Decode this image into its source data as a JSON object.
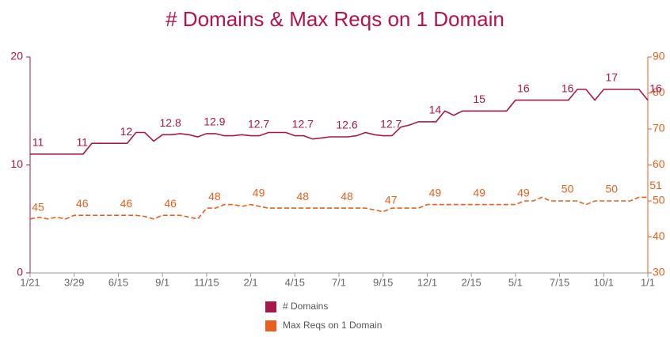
{
  "chart_data": {
    "type": "line",
    "title": "# Domains & Max Reqs on 1 Domain",
    "categories": [
      "1/21",
      null,
      null,
      null,
      null,
      "3/29",
      null,
      null,
      null,
      null,
      "6/15",
      null,
      null,
      null,
      null,
      "9/1",
      null,
      null,
      null,
      null,
      "11/15",
      null,
      null,
      null,
      null,
      "2/1",
      null,
      null,
      null,
      null,
      "4/15",
      null,
      null,
      null,
      null,
      "7/1",
      null,
      null,
      null,
      null,
      "9/15",
      null,
      null,
      null,
      null,
      "12/1",
      null,
      null,
      null,
      null,
      "2/15",
      null,
      null,
      null,
      null,
      "5/1",
      null,
      null,
      null,
      null,
      "7/15",
      null,
      null,
      null,
      null,
      "10/1",
      null,
      null,
      null,
      null,
      "1/1"
    ],
    "series": [
      {
        "name": "# Domains",
        "color": "#a8174a",
        "axis": "y",
        "dash": false,
        "values": [
          11,
          11,
          11,
          11,
          11,
          11,
          11,
          12,
          12,
          12,
          12,
          12,
          13,
          13,
          12.2,
          12.8,
          12.8,
          12.9,
          12.8,
          12.6,
          12.9,
          12.9,
          12.7,
          12.7,
          12.8,
          12.7,
          12.7,
          13,
          13,
          13,
          12.7,
          12.7,
          12.4,
          12.5,
          12.6,
          12.6,
          12.6,
          12.7,
          13,
          12.8,
          12.7,
          12.7,
          13.5,
          13.7,
          14,
          14,
          14,
          15,
          14.6,
          15,
          15,
          15,
          15,
          15,
          15,
          16,
          16,
          16,
          16,
          16,
          16,
          16,
          17,
          17,
          16,
          17,
          17,
          17,
          17,
          17,
          16
        ],
        "value_labels": [
          "11",
          null,
          null,
          null,
          null,
          "11",
          null,
          null,
          null,
          null,
          "12",
          null,
          null,
          null,
          null,
          "12.8",
          null,
          null,
          null,
          null,
          "12.9",
          null,
          null,
          null,
          null,
          "12.7",
          null,
          null,
          null,
          null,
          "12.7",
          null,
          null,
          null,
          null,
          "12.6",
          null,
          null,
          null,
          null,
          "12.7",
          null,
          null,
          null,
          null,
          "14",
          null,
          null,
          null,
          null,
          "15",
          null,
          null,
          null,
          null,
          "16",
          null,
          null,
          null,
          null,
          "16",
          null,
          null,
          null,
          null,
          "17",
          null,
          null,
          null,
          null,
          "16"
        ]
      },
      {
        "name": "Max Reqs on 1 Domain",
        "color": "#e8601c",
        "axis": "y2",
        "dash": true,
        "values": [
          45,
          45.5,
          45,
          45.5,
          45,
          46,
          46,
          46,
          46,
          46,
          46,
          46,
          46,
          45.7,
          45,
          46,
          46,
          46,
          45.5,
          45,
          48,
          48,
          49,
          49,
          48.5,
          49,
          48.5,
          48,
          48,
          48,
          48,
          48,
          48,
          48,
          48,
          48,
          48,
          48,
          48,
          47.5,
          47,
          48,
          48,
          48,
          48,
          49,
          49,
          49,
          49,
          49,
          49,
          49,
          49,
          49,
          49,
          49,
          50,
          50,
          51,
          50,
          50,
          50,
          50,
          49,
          50,
          50,
          50,
          50,
          50,
          51,
          51
        ],
        "value_labels": [
          "45",
          null,
          null,
          null,
          null,
          "46",
          null,
          null,
          null,
          null,
          "46",
          null,
          null,
          null,
          null,
          "46",
          null,
          null,
          null,
          null,
          "48",
          null,
          null,
          null,
          null,
          "49",
          null,
          null,
          null,
          null,
          "48",
          null,
          null,
          null,
          null,
          "48",
          null,
          null,
          null,
          null,
          "47",
          null,
          null,
          null,
          null,
          "49",
          null,
          null,
          null,
          null,
          "49",
          null,
          null,
          null,
          null,
          "49",
          null,
          null,
          null,
          null,
          "50",
          null,
          null,
          null,
          null,
          "50",
          null,
          null,
          null,
          null,
          "51"
        ]
      }
    ],
    "ylim": [
      0,
      20
    ],
    "yticks": [
      0,
      10,
      20
    ],
    "y2lim": [
      30,
      90
    ],
    "y2ticks": [
      30,
      40,
      50,
      60,
      70,
      80,
      90
    ],
    "legend": "bottom"
  }
}
